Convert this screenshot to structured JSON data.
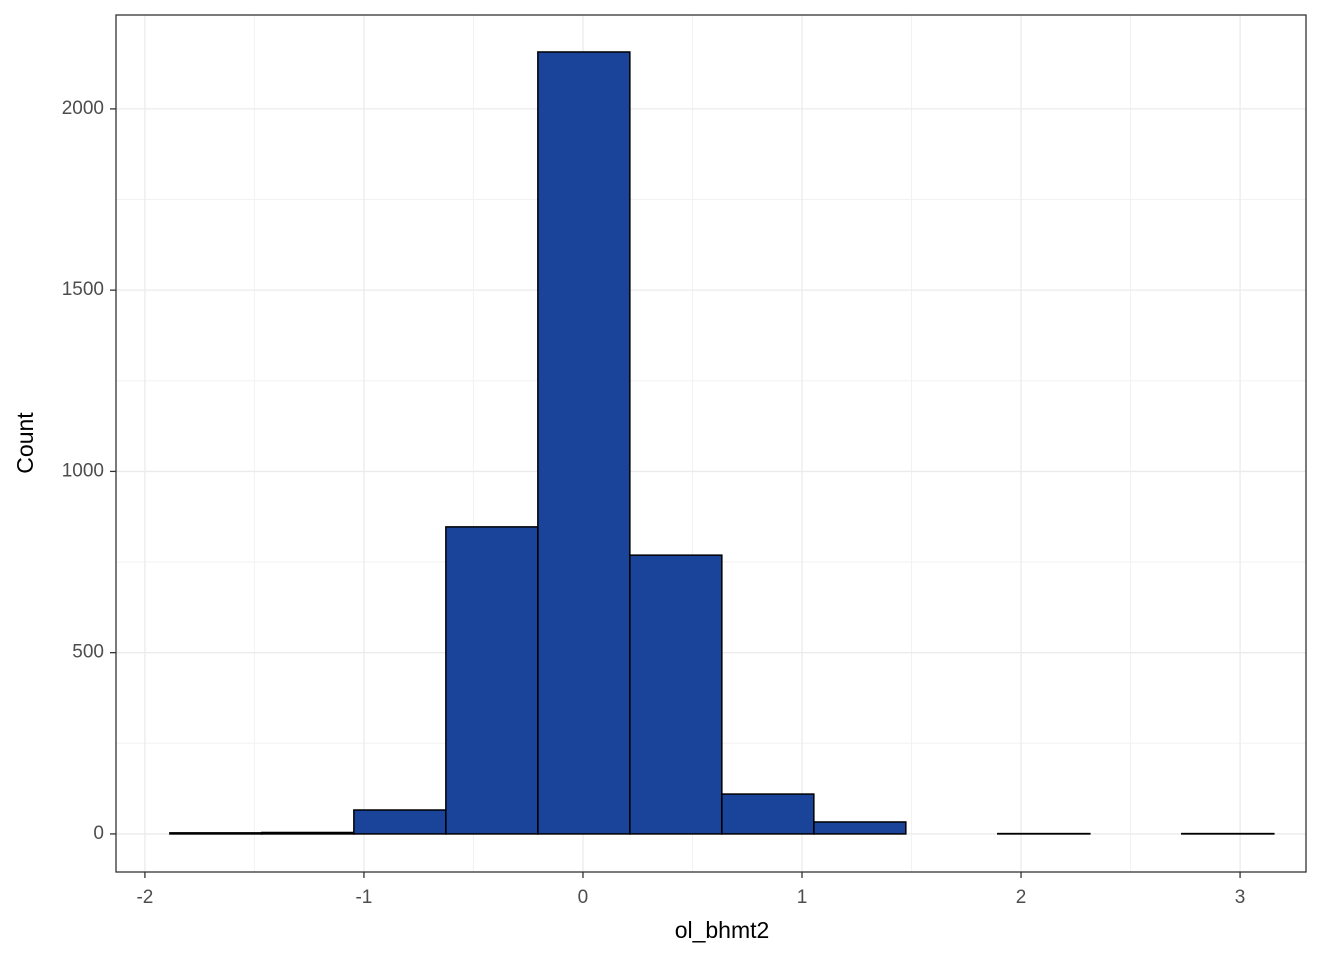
{
  "chart_data": {
    "type": "histogram",
    "x_label": "ol_bhmt2",
    "y_label": "Count",
    "bins": [
      -1.886,
      -1.466,
      -1.046,
      -0.626,
      -0.206,
      0.214,
      0.634,
      1.054,
      1.474,
      1.894,
      2.314,
      2.734,
      3.154
    ],
    "values": [
      3,
      4,
      66,
      847,
      2157,
      769,
      110,
      33,
      0,
      1,
      0,
      1
    ],
    "color": "#1a4499",
    "edge_color": "#000000",
    "xlim": [
      -2.132,
      3.301
    ],
    "ylim": [
      -105,
      2259
    ],
    "xticks": [
      -2,
      -1,
      0,
      1,
      2,
      3
    ],
    "yticks": [
      0,
      500,
      1000,
      1500,
      2000
    ],
    "minor_xticks": [
      -1.5,
      -0.5,
      0.5,
      1.5,
      2.5
    ],
    "minor_yticks": [
      250,
      750,
      1250,
      1750
    ],
    "grid": true
  }
}
